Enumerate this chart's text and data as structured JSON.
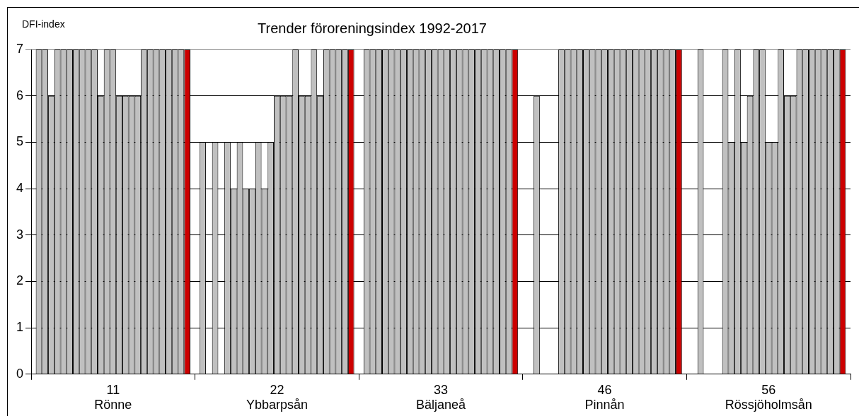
{
  "chart_data": {
    "type": "bar",
    "title": "Trender föroreningsindex 1992-2017",
    "ylabel": "DFI-index",
    "categories": [
      "11\nRönne",
      "22\nYbbarpsån",
      "33\nBäljaneå",
      "46\nPinnån",
      "56\nRössjöholmsån"
    ],
    "series": [
      {
        "color": "#c0c0c0",
        "values": [
          7,
          5,
          7,
          null,
          null
        ]
      },
      {
        "color": "#c0c0c0",
        "values": [
          7,
          null,
          7,
          6,
          7
        ]
      },
      {
        "color": "#c0c0c0",
        "values": [
          6,
          5,
          7,
          null,
          null
        ]
      },
      {
        "color": "#c0c0c0",
        "values": [
          7,
          null,
          7,
          null,
          null
        ]
      },
      {
        "color": "#c0c0c0",
        "values": [
          7,
          5,
          7,
          null,
          null
        ]
      },
      {
        "color": "#c0c0c0",
        "values": [
          7,
          4,
          7,
          7,
          7
        ]
      },
      {
        "color": "#c0c0c0",
        "values": [
          7,
          5,
          7,
          7,
          5
        ]
      },
      {
        "color": "#c0c0c0",
        "values": [
          7,
          4,
          7,
          7,
          7
        ]
      },
      {
        "color": "#c0c0c0",
        "values": [
          7,
          4,
          7,
          7,
          5
        ]
      },
      {
        "color": "#c0c0c0",
        "values": [
          7,
          5,
          7,
          7,
          6
        ]
      },
      {
        "color": "#c0c0c0",
        "values": [
          6,
          4,
          7,
          7,
          7
        ]
      },
      {
        "color": "#c0c0c0",
        "values": [
          7,
          5,
          7,
          7,
          7
        ]
      },
      {
        "color": "#c0c0c0",
        "values": [
          7,
          6,
          7,
          7,
          5
        ]
      },
      {
        "color": "#c0c0c0",
        "values": [
          6,
          6,
          7,
          7,
          5
        ]
      },
      {
        "color": "#c0c0c0",
        "values": [
          6,
          6,
          7,
          7,
          7
        ]
      },
      {
        "color": "#c0c0c0",
        "values": [
          6,
          7,
          7,
          7,
          6
        ]
      },
      {
        "color": "#c0c0c0",
        "values": [
          6,
          6,
          7,
          7,
          6
        ]
      },
      {
        "color": "#c0c0c0",
        "values": [
          7,
          6,
          7,
          7,
          7
        ]
      },
      {
        "color": "#c0c0c0",
        "values": [
          7,
          7,
          7,
          7,
          7
        ]
      },
      {
        "color": "#c0c0c0",
        "values": [
          7,
          6,
          7,
          7,
          7
        ]
      },
      {
        "color": "#c0c0c0",
        "values": [
          7,
          7,
          7,
          7,
          7
        ]
      },
      {
        "color": "#c0c0c0",
        "values": [
          7,
          7,
          7,
          7,
          7
        ]
      },
      {
        "color": "#c0c0c0",
        "values": [
          7,
          7,
          7,
          7,
          7
        ]
      },
      {
        "color": "#c0c0c0",
        "values": [
          7,
          7,
          7,
          7,
          7
        ]
      },
      {
        "color": "#cc0000",
        "values": [
          7,
          7,
          7,
          7,
          7
        ]
      }
    ],
    "ylim": [
      0,
      7
    ],
    "yticks": [
      0,
      1,
      2,
      3,
      4,
      5,
      6,
      7
    ],
    "grid": "y",
    "legend": false
  }
}
